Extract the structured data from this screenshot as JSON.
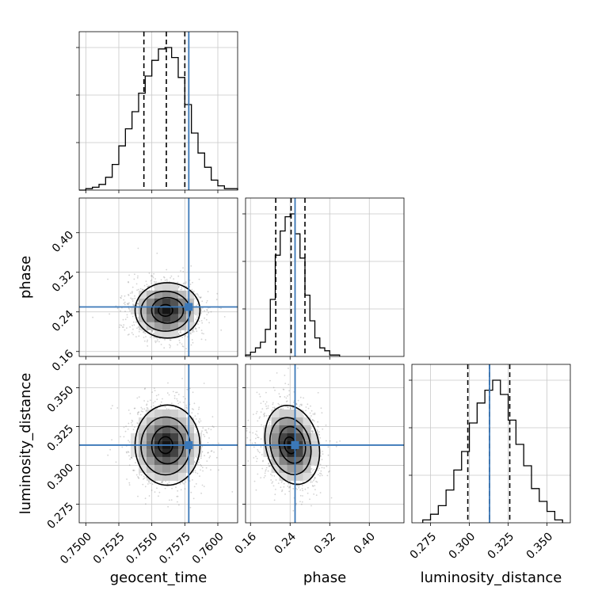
{
  "chart_data": {
    "type": "corner",
    "parameters": [
      "geocent_time",
      "phase",
      "luminosity_distance"
    ],
    "axis_labels": {
      "x": [
        "geocent_time",
        "phase",
        "luminosity_distance"
      ],
      "y": [
        "phase",
        "luminosity_distance"
      ]
    },
    "grid": true,
    "colors": {
      "truth": "#3b78b8",
      "line": "#000000",
      "grid": "#c8c8c8",
      "points": "#808080"
    },
    "truths": {
      "geocent_time": 0.7578,
      "phase": 0.25,
      "luminosity_distance": 0.313
    },
    "ranges": {
      "geocent_time": [
        0.7495,
        0.7615
      ],
      "phase": [
        0.15,
        0.47
      ],
      "luminosity_distance": [
        0.263,
        0.365
      ]
    },
    "ticks": {
      "geocent_time": {
        "values": [
          0.75,
          0.7525,
          0.755,
          0.7575,
          0.76
        ],
        "labels": [
          "0.7500",
          "0.7525",
          "0.7550",
          "0.7575",
          "0.7600"
        ]
      },
      "phase": {
        "values": [
          0.16,
          0.24,
          0.32,
          0.4
        ],
        "labels": [
          "0.16",
          "0.24",
          "0.32",
          "0.40"
        ]
      },
      "luminosity_distance": {
        "values": [
          0.275,
          0.3,
          0.325,
          0.35
        ],
        "labels": [
          "0.275",
          "0.300",
          "0.325",
          "0.350"
        ]
      }
    },
    "histograms": {
      "geocent_time": {
        "quantiles": [
          0.7544,
          0.7561,
          0.7575
        ],
        "edges": [
          0.7495,
          0.75,
          0.7505,
          0.751,
          0.7515,
          0.752,
          0.7525,
          0.753,
          0.7535,
          0.754,
          0.7545,
          0.755,
          0.7555,
          0.756,
          0.7565,
          0.757,
          0.7575,
          0.758,
          0.7585,
          0.759,
          0.7595,
          0.76,
          0.7605,
          0.761,
          0.7615
        ],
        "counts": [
          0,
          0.01,
          0.02,
          0.04,
          0.09,
          0.18,
          0.31,
          0.43,
          0.55,
          0.68,
          0.8,
          0.91,
          0.99,
          1.0,
          0.93,
          0.79,
          0.6,
          0.4,
          0.26,
          0.16,
          0.07,
          0.03,
          0.01,
          0.01
        ]
      },
      "phase": {
        "quantiles": [
          0.211,
          0.242,
          0.27
        ],
        "edges": [
          0.15,
          0.16,
          0.17,
          0.18,
          0.19,
          0.2,
          0.21,
          0.22,
          0.23,
          0.24,
          0.25,
          0.26,
          0.27,
          0.28,
          0.29,
          0.3,
          0.31,
          0.32,
          0.33,
          0.34
        ],
        "counts": [
          0.01,
          0.03,
          0.06,
          0.1,
          0.19,
          0.4,
          0.71,
          0.88,
          0.98,
          1.0,
          0.86,
          0.69,
          0.43,
          0.25,
          0.13,
          0.06,
          0.04,
          0.01,
          0.01
        ]
      },
      "luminosity_distance": {
        "quantiles": [
          0.299,
          0.313,
          0.326
        ],
        "edges": [
          0.27,
          0.275,
          0.28,
          0.285,
          0.29,
          0.295,
          0.3,
          0.305,
          0.31,
          0.315,
          0.32,
          0.325,
          0.33,
          0.335,
          0.34,
          0.345,
          0.35,
          0.355,
          0.36
        ],
        "counts": [
          0.02,
          0.06,
          0.12,
          0.23,
          0.37,
          0.5,
          0.7,
          0.84,
          0.93,
          1.0,
          0.9,
          0.72,
          0.55,
          0.4,
          0.24,
          0.15,
          0.08,
          0.02
        ]
      }
    },
    "joint": [
      {
        "x": "geocent_time",
        "y": "phase",
        "center": [
          0.7561,
          0.243
        ],
        "sigma": [
          0.0012,
          0.026
        ],
        "rho": 0.0
      },
      {
        "x": "geocent_time",
        "y": "luminosity_distance",
        "center": [
          0.7561,
          0.313
        ],
        "sigma": [
          0.0012,
          0.012
        ],
        "rho": 0.0
      },
      {
        "x": "phase",
        "y": "luminosity_distance",
        "center": [
          0.242,
          0.313
        ],
        "sigma": [
          0.026,
          0.012
        ],
        "rho": -0.15
      }
    ]
  }
}
